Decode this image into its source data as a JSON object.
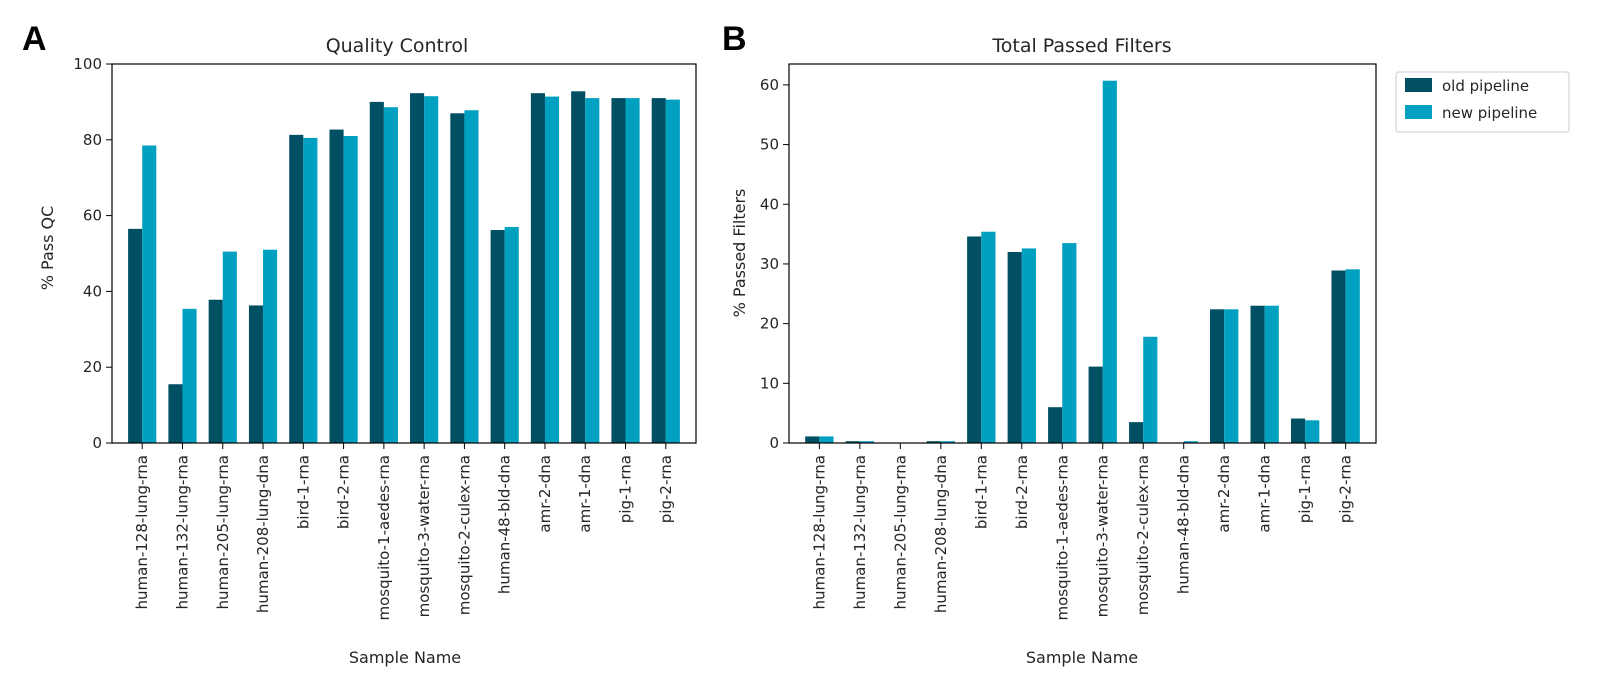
{
  "colors": {
    "old": "#004f63",
    "new": "#00a0c0",
    "axis": "#000000"
  },
  "legend": {
    "placement": "upper-right-outside",
    "entries": [
      "old pipeline",
      "new pipeline"
    ]
  },
  "chart_data": [
    {
      "panel": "A",
      "type": "bar",
      "title": "Quality Control",
      "xlabel": "Sample Name",
      "ylabel": "% Pass QC",
      "ylim": [
        0,
        100
      ],
      "yticks": [
        0,
        20,
        40,
        60,
        80,
        100
      ],
      "grid": false,
      "categories": [
        "human-128-lung-rna",
        "human-132-lung-rna",
        "human-205-lung-rna",
        "human-208-lung-dna",
        "bird-1-rna",
        "bird-2-rna",
        "mosquito-1-aedes-rna",
        "mosquito-3-water-rna",
        "mosquito-2-culex-rna",
        "human-48-bld-dna",
        "amr-2-dna",
        "amr-1-dna",
        "pig-1-rna",
        "pig-2-rna"
      ],
      "series": [
        {
          "name": "old pipeline",
          "values": [
            56.5,
            15.5,
            37.8,
            36.3,
            81.3,
            82.7,
            90.0,
            92.3,
            87.0,
            56.2,
            92.3,
            92.8,
            91.0,
            91.0
          ]
        },
        {
          "name": "new pipeline",
          "values": [
            78.5,
            35.4,
            50.5,
            51.0,
            80.5,
            81.0,
            88.6,
            91.5,
            87.8,
            57.0,
            91.4,
            91.0,
            91.0,
            90.6
          ]
        }
      ]
    },
    {
      "panel": "B",
      "type": "bar",
      "title": "Total Passed Filters",
      "xlabel": "Sample Name",
      "ylabel": "% Passed Filters",
      "ylim": [
        0,
        63.5
      ],
      "yticks": [
        0,
        10,
        20,
        30,
        40,
        50,
        60
      ],
      "grid": false,
      "categories": [
        "human-128-lung-rna",
        "human-132-lung-rna",
        "human-205-lung-rna",
        "human-208-lung-dna",
        "bird-1-rna",
        "bird-2-rna",
        "mosquito-1-aedes-rna",
        "mosquito-3-water-rna",
        "mosquito-2-culex-rna",
        "human-48-bld-dna",
        "amr-2-dna",
        "amr-1-dna",
        "pig-1-rna",
        "pig-2-rna"
      ],
      "series": [
        {
          "name": "old pipeline",
          "values": [
            1.1,
            0.3,
            0.0,
            0.3,
            34.6,
            32.0,
            6.0,
            12.8,
            3.5,
            0.0,
            22.4,
            23.0,
            4.1,
            28.9
          ]
        },
        {
          "name": "new pipeline",
          "values": [
            1.1,
            0.3,
            0.0,
            0.3,
            35.4,
            32.6,
            33.5,
            60.7,
            17.8,
            0.3,
            22.4,
            23.0,
            3.8,
            29.1
          ]
        }
      ]
    }
  ]
}
